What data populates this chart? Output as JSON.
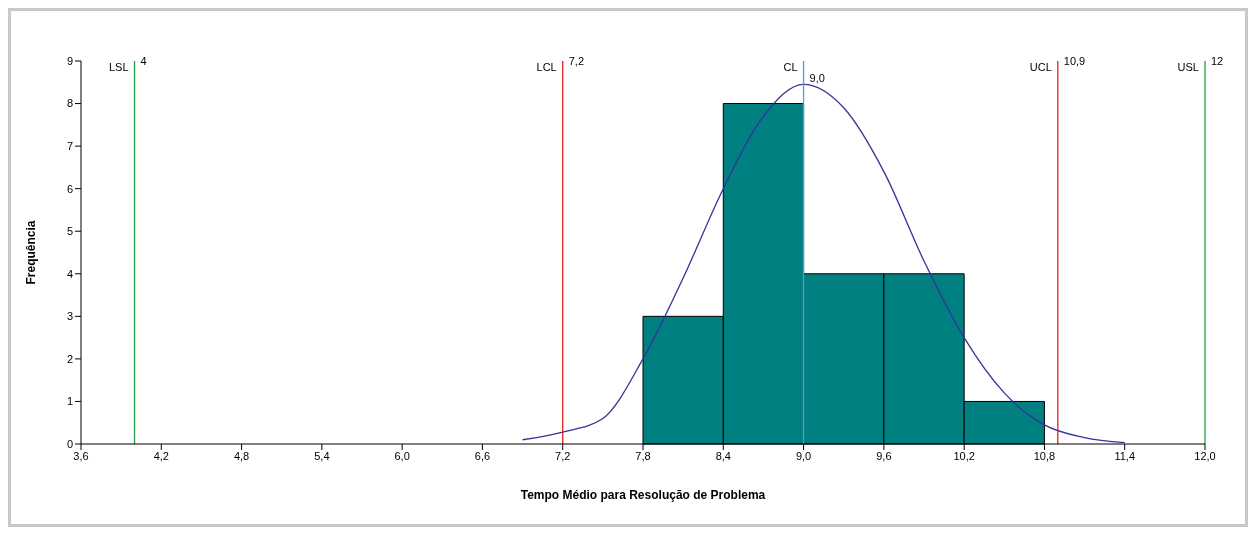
{
  "chart_data": {
    "type": "histogram",
    "xlabel": "Tempo Médio para Resolução de Problema",
    "ylabel": "Frequência",
    "bins": [
      7.8,
      8.4,
      9.0,
      9.6,
      10.2,
      10.8
    ],
    "values": [
      3,
      8,
      4,
      4,
      1
    ],
    "color": "#008080",
    "series": [
      {
        "type": "line",
        "color": "#333399",
        "x": [
          6.9,
          7.2,
          7.5,
          7.8,
          8.1,
          8.4,
          8.7,
          9.0,
          9.3,
          9.6,
          9.9,
          10.2,
          10.5,
          10.8,
          11.1,
          11.4
        ],
        "values": [
          0.1,
          0.28,
          0.6,
          2.0,
          3.9,
          6.0,
          7.7,
          8.45,
          7.9,
          6.4,
          4.3,
          2.5,
          1.2,
          0.45,
          0.15,
          0.03
        ]
      }
    ],
    "xlim": [
      3.6,
      12.0
    ],
    "xticks": [
      {
        "value": 3.6,
        "label": "3,6"
      },
      {
        "value": 4.2,
        "label": "4,2"
      },
      {
        "value": 4.8,
        "label": "4,8"
      },
      {
        "value": 5.4,
        "label": "5,4"
      },
      {
        "value": 6.0,
        "label": "6,0"
      },
      {
        "value": 6.6,
        "label": "6,6"
      },
      {
        "value": 7.2,
        "label": "7,2"
      },
      {
        "value": 7.8,
        "label": "7,8"
      },
      {
        "value": 8.4,
        "label": "8,4"
      },
      {
        "value": 9.0,
        "label": "9,0"
      },
      {
        "value": 9.6,
        "label": "9,6"
      },
      {
        "value": 10.2,
        "label": "10,2"
      },
      {
        "value": 10.8,
        "label": "10,8"
      },
      {
        "value": 11.4,
        "label": "11,4"
      },
      {
        "value": 12.0,
        "label": "12,0"
      }
    ],
    "ylim": [
      0,
      9
    ],
    "yticks": [
      0,
      1,
      2,
      3,
      4,
      5,
      6,
      7,
      8,
      9
    ],
    "grid": false,
    "legend": false,
    "ref_lines": [
      {
        "axis": "x",
        "value": 4,
        "label": "LSL",
        "color": "#20a040"
      },
      {
        "axis": "x",
        "value": 7.2,
        "label": "LCL",
        "color": "#e02020"
      },
      {
        "axis": "x",
        "value": 9.0,
        "label": "CL",
        "color": "#5b9bd5"
      },
      {
        "axis": "x",
        "value": 10.9,
        "label": "UCL",
        "color": "#e02020"
      },
      {
        "axis": "x",
        "value": 12,
        "label": "USL",
        "color": "#20a040"
      }
    ],
    "annotations": [
      {
        "text": "4",
        "x": 4,
        "y": 9
      },
      {
        "text": "7,2",
        "x": 7.2,
        "y": 9
      },
      {
        "text": "9,0",
        "x": 9.0,
        "y": 8.6
      },
      {
        "text": "10,9",
        "x": 10.9,
        "y": 9
      },
      {
        "text": "12",
        "x": 12,
        "y": 9
      }
    ]
  }
}
